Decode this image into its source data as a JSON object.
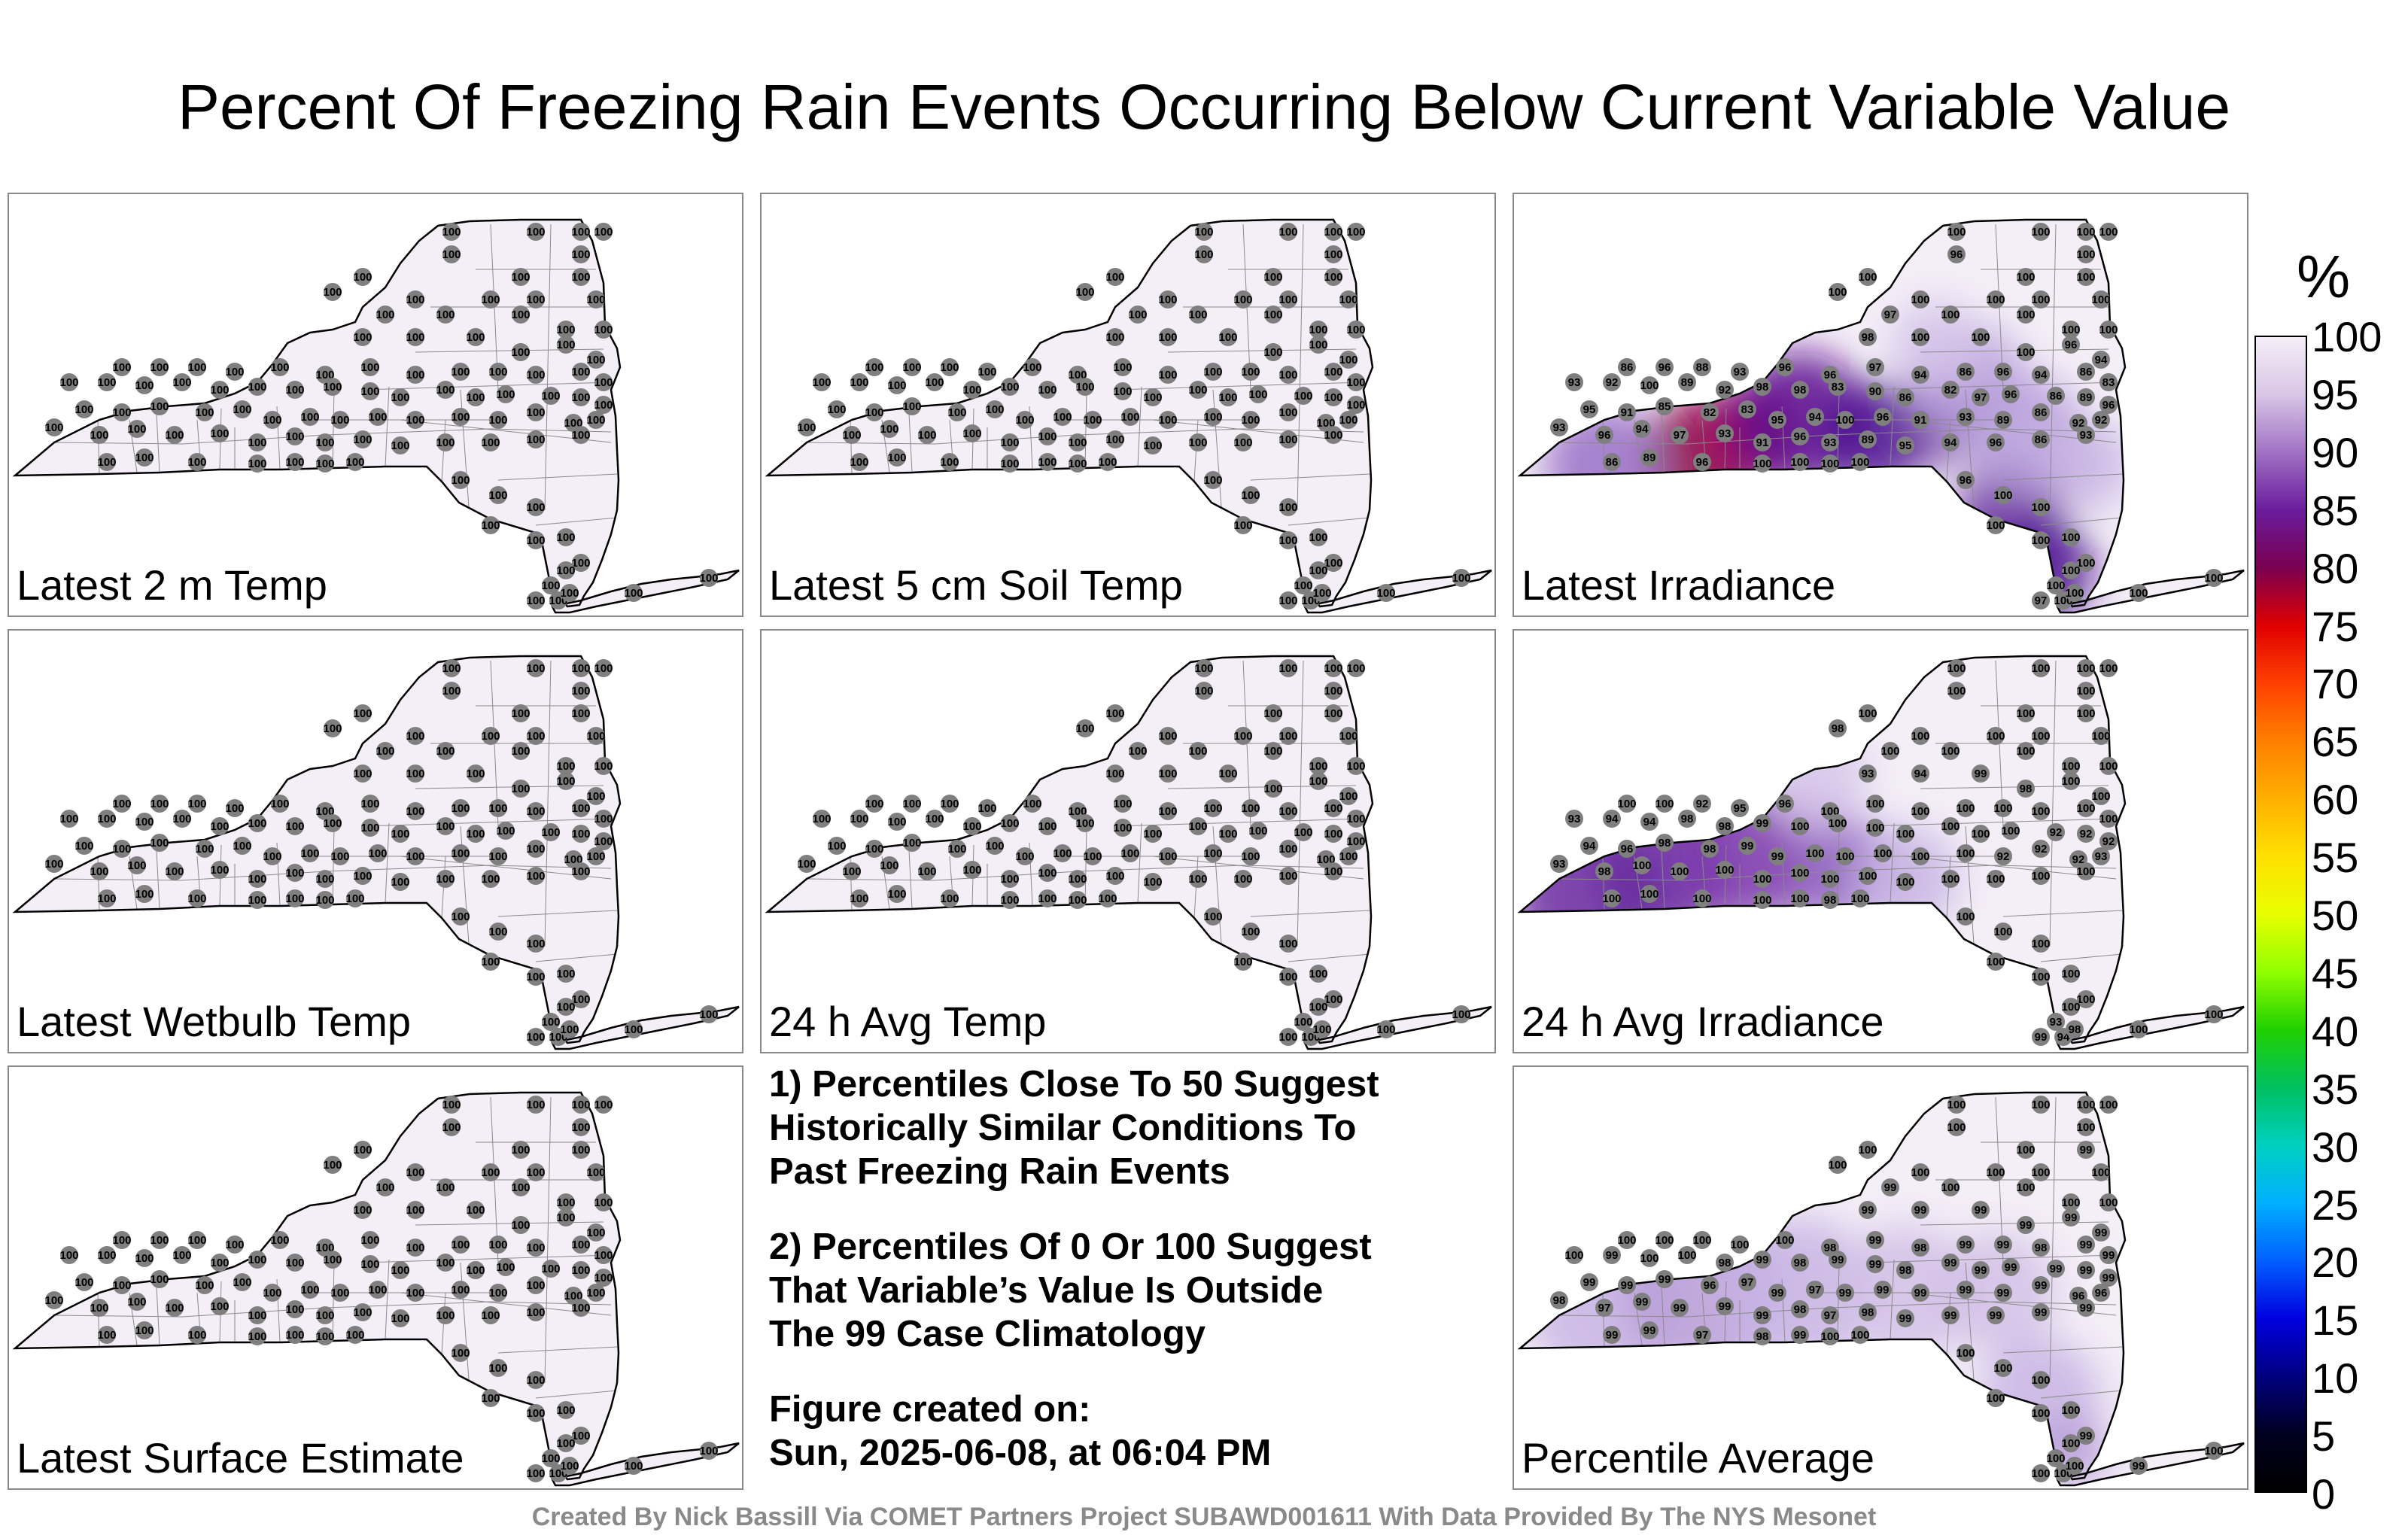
{
  "title": "Percent Of Freezing Rain Events Occurring Below Current Variable Value",
  "panels": [
    {
      "label": "Latest 2 m Temp",
      "values": [
        100
      ]
    },
    {
      "label": "Latest 5 cm Soil Temp",
      "values": [
        100
      ]
    },
    {
      "label": "Latest Irradiance",
      "values": [
        100,
        100,
        100,
        100,
        96,
        100,
        100,
        100,
        100,
        100,
        100,
        100,
        100,
        100,
        97,
        100,
        100,
        100,
        100,
        98,
        100,
        100,
        100,
        96,
        94,
        86,
        96,
        88,
        93,
        96,
        96,
        97,
        94,
        86,
        96,
        94,
        86,
        83,
        93,
        92,
        100,
        89,
        92,
        98,
        98,
        83,
        90,
        86,
        82,
        97,
        96,
        86,
        89,
        96,
        95,
        91,
        85,
        82,
        83,
        95,
        94,
        100,
        96,
        91,
        93,
        89,
        86,
        92,
        92,
        93,
        96,
        94,
        97,
        93,
        91,
        96,
        93,
        89,
        95,
        94,
        96,
        86,
        93,
        86,
        89,
        96
      ]
    },
    {
      "label": "Latest Wetbulb Temp",
      "values": [
        100
      ]
    },
    {
      "label": "24 h Avg Temp",
      "values": [
        100
      ]
    },
    {
      "label": "24 h Avg Irradiance",
      "values": [
        100,
        100,
        100,
        100,
        100,
        100,
        100,
        100,
        100,
        98,
        100,
        100,
        100,
        100,
        100,
        100,
        100,
        100,
        100,
        93,
        94,
        99,
        98,
        100,
        100,
        100,
        100,
        92,
        95,
        96,
        100,
        100,
        100,
        100,
        100,
        100,
        100,
        100,
        93,
        94,
        94,
        98,
        98,
        99,
        100,
        100,
        100,
        100,
        100,
        100,
        100,
        92,
        92,
        92,
        94,
        96,
        98,
        98,
        99,
        99,
        100,
        100,
        100,
        100,
        100,
        92,
        92,
        92,
        93,
        93,
        98,
        100,
        100,
        100,
        100,
        100,
        100,
        100,
        100
      ]
    },
    {
      "label": "Latest Surface Estimate",
      "values": [
        100
      ]
    },
    {
      "label": "Percentile Average",
      "values": [
        100,
        100,
        100,
        100,
        100,
        100,
        100,
        100,
        99,
        100,
        100,
        100,
        100,
        100,
        99,
        100,
        100,
        100,
        100,
        99,
        99,
        99,
        99,
        99,
        99,
        100,
        100,
        100,
        100,
        100,
        98,
        99,
        98,
        99,
        99,
        98,
        99,
        99,
        100,
        99,
        100,
        100,
        98,
        99,
        98,
        99,
        99,
        98,
        99,
        99,
        99,
        99,
        99,
        99,
        99,
        99,
        99,
        96,
        97,
        99,
        97,
        99,
        99,
        99,
        99,
        99,
        99,
        96,
        96,
        98,
        97,
        99,
        99,
        99,
        99,
        98,
        97,
        98,
        99,
        99,
        99,
        99,
        99,
        99,
        99,
        97,
        98,
        99
      ]
    }
  ],
  "notes": {
    "line1": "1) Percentiles Close To 50 Suggest",
    "line2": "Historically Similar Conditions To",
    "line3": "Past Freezing Rain Events",
    "line4": "2) Percentiles Of 0 Or 100 Suggest",
    "line5": "That Variable’s Value Is Outside",
    "line6": "The 99 Case Climatology",
    "created_label": "Figure created on:",
    "created_value": "Sun, 2025-06-08, at 06:04 PM"
  },
  "footer": "Created By Nick Bassill Via COMET Partners Project SUBAWD001611 With Data Provided By The NYS Mesonet",
  "colorbar": {
    "unit": "%",
    "ticks": [
      "100",
      "95",
      "90",
      "85",
      "80",
      "75",
      "70",
      "65",
      "60",
      "55",
      "50",
      "45",
      "40",
      "35",
      "30",
      "25",
      "20",
      "15",
      "10",
      "5",
      "0"
    ],
    "stops": [
      "#f4eef7",
      "#d9c6e6",
      "#a071c4",
      "#6a1c9c",
      "#7a0050",
      "#e00000",
      "#ff4000",
      "#ff8000",
      "#ffb000",
      "#ffe000",
      "#e8ff00",
      "#90ff00",
      "#20d000",
      "#00c060",
      "#00d0c0",
      "#00b0ff",
      "#0060ff",
      "#0000e0",
      "#000080",
      "#000020",
      "#000000"
    ]
  },
  "map_colors": {
    "fill_100": "#f4eef7",
    "dot": "#7f7f7f",
    "outline": "#000000",
    "county": "#8a8a8a"
  }
}
